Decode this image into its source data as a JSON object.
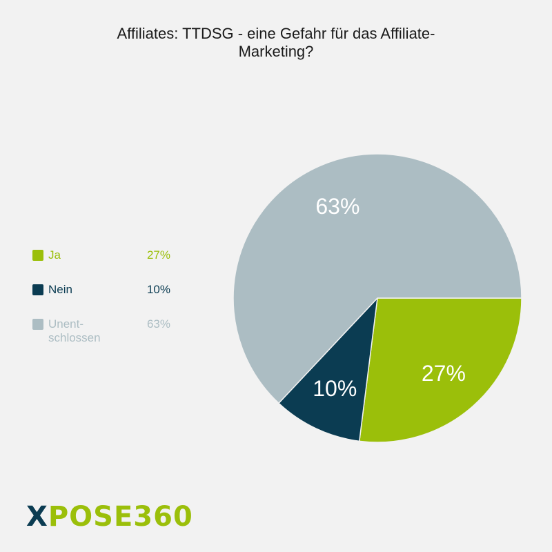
{
  "chart_data": {
    "type": "pie",
    "title": "Affiliates: TTDSG - eine Gefahr für das Affiliate-Marketing?",
    "categories": [
      "Ja",
      "Nein",
      "Unent-schlossen"
    ],
    "values": [
      27,
      10,
      63
    ],
    "value_labels": [
      "27%",
      "10%",
      "63%"
    ],
    "colors": [
      "#9bbf0a",
      "#0b3c52",
      "#acbdc3"
    ],
    "legend_position": "left"
  },
  "title_lines": [
    "Affiliates: TTDSG - eine Gefahr für das Affiliate-",
    "Marketing?"
  ],
  "legend": [
    {
      "label_lines": [
        "Ja"
      ],
      "value": "27%",
      "color": "#9bbf0a"
    },
    {
      "label_lines": [
        "Nein"
      ],
      "value": "10%",
      "color": "#0b3c52"
    },
    {
      "label_lines": [
        "Unent-",
        "schlossen"
      ],
      "value": "63%",
      "color": "#acbdc3"
    }
  ],
  "logo": {
    "x": "X",
    "rest": "POSE360"
  }
}
